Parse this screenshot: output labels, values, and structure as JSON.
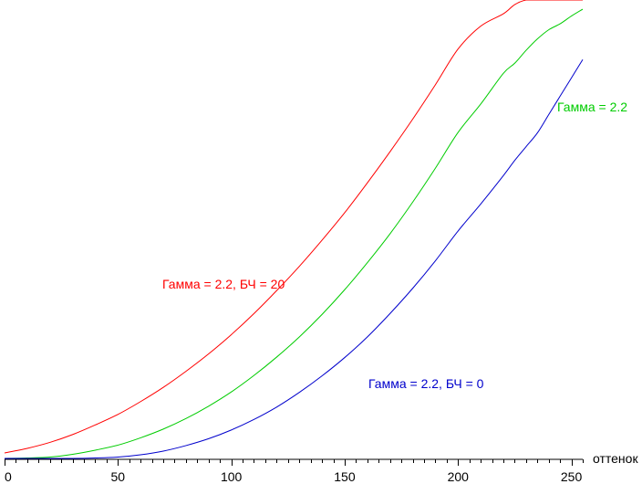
{
  "chart_data": {
    "type": "line",
    "xlabel": "оттенок",
    "ylabel": "",
    "xlim": [
      0,
      255
    ],
    "ylim": [
      0,
      1
    ],
    "x_ticks": [
      0,
      50,
      100,
      150,
      200,
      250
    ],
    "grid": false,
    "legend": "none",
    "x": [
      0,
      10,
      20,
      30,
      40,
      50,
      60,
      70,
      80,
      90,
      100,
      110,
      120,
      130,
      140,
      150,
      160,
      170,
      180,
      190,
      200,
      210,
      220,
      225,
      230,
      235,
      240,
      245,
      250,
      255
    ],
    "series": [
      {
        "name": "Гамма = 2.2, БЧ = 20",
        "color": "#ff0000",
        "values": [
          0.012,
          0.022,
          0.035,
          0.052,
          0.073,
          0.096,
          0.124,
          0.155,
          0.19,
          0.228,
          0.27,
          0.316,
          0.366,
          0.419,
          0.476,
          0.536,
          0.601,
          0.669,
          0.74,
          0.815,
          0.893,
          0.943,
          0.97,
          0.99,
          1.0,
          1.0,
          1.0,
          1.0,
          1.0,
          1.0
        ]
      },
      {
        "name": "Гамма = 2.2",
        "color": "#00cc00",
        "values": [
          0.0,
          0.001,
          0.003,
          0.009,
          0.018,
          0.029,
          0.045,
          0.064,
          0.087,
          0.114,
          0.145,
          0.181,
          0.221,
          0.265,
          0.314,
          0.368,
          0.427,
          0.49,
          0.559,
          0.633,
          0.711,
          0.773,
          0.84,
          0.862,
          0.89,
          0.915,
          0.935,
          0.948,
          0.965,
          0.98
        ]
      },
      {
        "name": "Гамма = 2.2, БЧ = 0",
        "color": "#0000cc",
        "values": [
          0.0,
          0.0,
          0.0,
          0.0,
          0.001,
          0.003,
          0.008,
          0.016,
          0.028,
          0.043,
          0.062,
          0.085,
          0.112,
          0.144,
          0.18,
          0.22,
          0.265,
          0.316,
          0.371,
          0.431,
          0.496,
          0.555,
          0.617,
          0.65,
          0.68,
          0.71,
          0.75,
          0.79,
          0.83,
          0.87
        ]
      }
    ]
  }
}
